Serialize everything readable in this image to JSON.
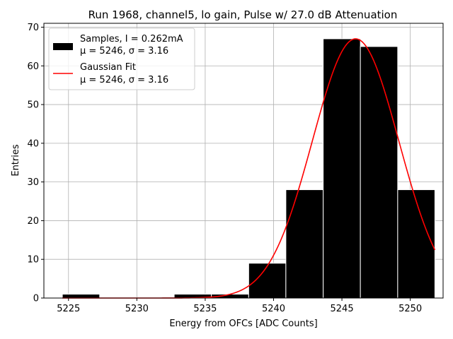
{
  "chart_data": {
    "type": "bar",
    "title": "Run 1968, channel5, lo gain, Pulse w/ 27.0 dB Attenuation",
    "xlabel": "Energy from OFCs [ADC Counts]",
    "ylabel": "Entries",
    "xlim": [
      5223.2,
      5252.4
    ],
    "ylim": [
      0,
      71
    ],
    "grid": true,
    "legend_placement": "top-left",
    "x_ticks": [
      5225,
      5230,
      5235,
      5240,
      5245,
      5250
    ],
    "x_tick_labels": [
      "5225",
      "5230",
      "5235",
      "5240",
      "5245",
      "5250"
    ],
    "y_ticks": [
      0,
      10,
      20,
      30,
      40,
      50,
      60,
      70
    ],
    "y_tick_labels": [
      "0",
      "10",
      "20",
      "30",
      "40",
      "50",
      "60",
      "70"
    ],
    "bins": [
      {
        "x0": 5224.55,
        "x1": 5227.28,
        "count": 1
      },
      {
        "x0": 5227.28,
        "x1": 5230.0,
        "count": 0
      },
      {
        "x0": 5230.0,
        "x1": 5232.73,
        "count": 0
      },
      {
        "x0": 5232.73,
        "x1": 5235.45,
        "count": 1
      },
      {
        "x0": 5235.45,
        "x1": 5238.18,
        "count": 1
      },
      {
        "x0": 5238.18,
        "x1": 5240.9,
        "count": 9
      },
      {
        "x0": 5240.9,
        "x1": 5243.63,
        "count": 28
      },
      {
        "x0": 5243.63,
        "x1": 5246.35,
        "count": 67
      },
      {
        "x0": 5246.35,
        "x1": 5249.08,
        "count": 65
      },
      {
        "x0": 5249.08,
        "x1": 5251.8,
        "count": 28
      }
    ],
    "series": [
      {
        "name": "Samples, I = 0.262mA",
        "name_line2": "μ = 5246, σ = 3.16",
        "kind": "histogram",
        "color": "#000000"
      },
      {
        "name": "Gaussian Fit",
        "name_line2": "μ = 5246, σ = 3.16",
        "kind": "gaussian",
        "color": "#ff0000",
        "amplitude": 67,
        "mu": 5246,
        "sigma": 3.16,
        "x_range": [
          5224.55,
          5251.8
        ]
      }
    ]
  }
}
